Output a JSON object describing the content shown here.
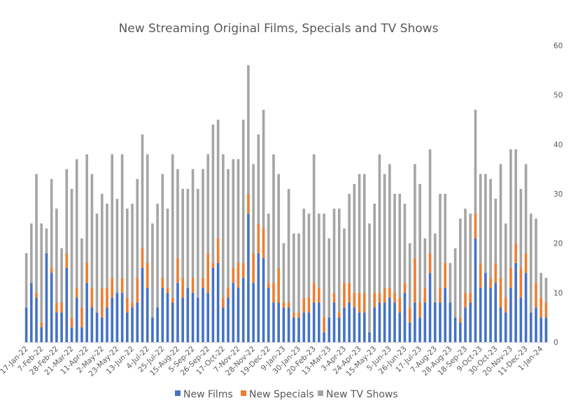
{
  "chart_data": {
    "type": "bar",
    "stacked": true,
    "title": "New Streaming Original Films, Specials and TV Shows",
    "xlabel": "",
    "ylabel": "",
    "ylim": [
      0,
      60
    ],
    "y_ticks": [
      0,
      10,
      20,
      30,
      40,
      50,
      60
    ],
    "y_axis_side": "right",
    "grid": false,
    "legend_position": "bottom",
    "x_tick_labels": [
      "17-Jan-22",
      "7-Feb-22",
      "28-Feb-22",
      "21-Mar-22",
      "11-Apr-22",
      "2-May-22",
      "23-May-22",
      "13-Jun-22",
      "4-Jul-22",
      "25-Jul-22",
      "15-Aug-22",
      "5-Sep-22",
      "26-Sep-22",
      "17-Oct-22",
      "7-Nov-22",
      "28-Nov-22",
      "19-Dec-22",
      "9-Jan-23",
      "30-Jan-23",
      "20-Feb-23",
      "13-Mar-23",
      "3-Apr-23",
      "24-Apr-23",
      "15-May-23",
      "5-Jun-23",
      "26-Jun-23",
      "17-Jul-23",
      "7-Aug-23",
      "28-Aug-23",
      "18-Sep-23",
      "9-Oct-23",
      "30-Oct-23",
      "20-Nov-23",
      "11-Dec-23",
      "1-Jan-24"
    ],
    "series": [
      {
        "name": "New Films",
        "color": "#4472C4",
        "values": [
          7,
          12,
          9,
          3,
          18,
          14,
          6,
          6,
          15,
          3,
          9,
          3,
          12,
          7,
          6,
          5,
          7,
          9,
          10,
          10,
          6,
          7,
          8,
          15,
          11,
          5,
          7,
          11,
          10,
          8,
          12,
          9,
          11,
          10,
          9,
          11,
          10,
          15,
          16,
          7,
          9,
          12,
          11,
          13,
          26,
          12,
          18,
          17,
          11,
          8,
          8,
          7,
          7,
          5,
          5,
          6,
          6,
          8,
          8,
          2,
          5,
          8,
          5,
          7,
          8,
          7,
          6,
          6,
          2,
          7,
          8,
          8,
          9,
          8,
          6,
          10,
          4,
          8,
          5,
          8,
          14,
          8,
          8,
          11,
          8,
          5,
          4,
          7,
          8,
          21,
          11,
          14,
          11,
          12,
          7,
          6,
          11,
          16,
          9,
          14,
          6,
          7,
          5,
          5
        ]
      },
      {
        "name": "New Specials",
        "color": "#ED7D31",
        "values": [
          0,
          0,
          1,
          1,
          0,
          1,
          2,
          2,
          3,
          2,
          2,
          4,
          4,
          4,
          0,
          6,
          4,
          4,
          0,
          3,
          3,
          1,
          5,
          4,
          5,
          0,
          0,
          2,
          1,
          1,
          5,
          4,
          0,
          3,
          0,
          2,
          8,
          1,
          5,
          2,
          2,
          3,
          5,
          3,
          4,
          6,
          6,
          6,
          1,
          4,
          7,
          1,
          1,
          1,
          1,
          3,
          3,
          4,
          3,
          3,
          0,
          2,
          1,
          5,
          4,
          3,
          4,
          4,
          0,
          3,
          2,
          3,
          2,
          2,
          3,
          2,
          3,
          9,
          3,
          3,
          4,
          0,
          3,
          5,
          0,
          0,
          1,
          3,
          2,
          5,
          5,
          0,
          2,
          4,
          6,
          3,
          4,
          4,
          6,
          4,
          0,
          5,
          4,
          3
        ]
      },
      {
        "name": "New TV Shows",
        "color": "#A5A5A5",
        "values": [
          11,
          12,
          24,
          20,
          5,
          18,
          19,
          11,
          17,
          26,
          26,
          14,
          22,
          23,
          20,
          19,
          17,
          25,
          19,
          25,
          18,
          20,
          20,
          23,
          22,
          19,
          21,
          21,
          16,
          29,
          18,
          18,
          20,
          22,
          22,
          22,
          20,
          28,
          24,
          29,
          24,
          22,
          21,
          29,
          26,
          18,
          18,
          24,
          14,
          26,
          19,
          12,
          23,
          16,
          16,
          18,
          17,
          26,
          15,
          21,
          16,
          17,
          21,
          11,
          18,
          22,
          24,
          24,
          22,
          18,
          28,
          23,
          25,
          20,
          21,
          16,
          13,
          19,
          24,
          10,
          21,
          14,
          19,
          14,
          8,
          14,
          20,
          17,
          16,
          21,
          18,
          20,
          20,
          13,
          23,
          15,
          24,
          19,
          16,
          18,
          20,
          13,
          5,
          5
        ]
      }
    ]
  },
  "legend": {
    "films": "New Films",
    "specials": "New Specials",
    "tv": "New TV Shows"
  }
}
